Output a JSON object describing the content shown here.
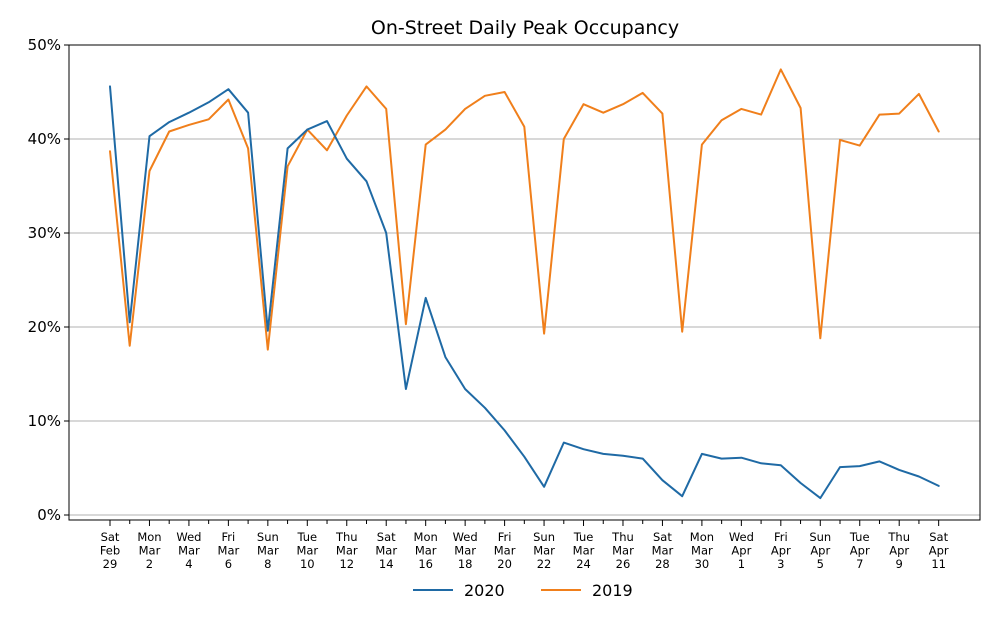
{
  "chart_data": {
    "type": "line",
    "title": "On-Street Daily Peak Occupancy",
    "xlabel": "",
    "ylabel": "",
    "ylim": [
      0,
      0.5
    ],
    "yticks": [
      {
        "value": 0.0,
        "label": "0%"
      },
      {
        "value": 0.1,
        "label": "10%"
      },
      {
        "value": 0.2,
        "label": "20%"
      },
      {
        "value": 0.3,
        "label": "30%"
      },
      {
        "value": 0.4,
        "label": "40%"
      },
      {
        "value": 0.5,
        "label": "50%"
      }
    ],
    "grid": "y",
    "legend": "bottom-center",
    "x_labels": [
      [
        "Sat",
        "Feb",
        "29"
      ],
      [
        "Mon",
        "Mar",
        "2"
      ],
      [
        "Wed",
        "Mar",
        "4"
      ],
      [
        "Fri",
        "Mar",
        "6"
      ],
      [
        "Sun",
        "Mar",
        "8"
      ],
      [
        "Tue",
        "Mar",
        "10"
      ],
      [
        "Thu",
        "Mar",
        "12"
      ],
      [
        "Sat",
        "Mar",
        "14"
      ],
      [
        "Mon",
        "Mar",
        "16"
      ],
      [
        "Wed",
        "Mar",
        "18"
      ],
      [
        "Fri",
        "Mar",
        "20"
      ],
      [
        "Sun",
        "Mar",
        "22"
      ],
      [
        "Tue",
        "Mar",
        "24"
      ],
      [
        "Thu",
        "Mar",
        "26"
      ],
      [
        "Sat",
        "Mar",
        "28"
      ],
      [
        "Mon",
        "Mar",
        "30"
      ],
      [
        "Wed",
        "Apr",
        "1"
      ],
      [
        "Fri",
        "Apr",
        "3"
      ],
      [
        "Sun",
        "Apr",
        "5"
      ],
      [
        "Tue",
        "Apr",
        "7"
      ],
      [
        "Thu",
        "Apr",
        "9"
      ],
      [
        "Sat",
        "Apr",
        "11"
      ]
    ],
    "series": [
      {
        "name": "2020",
        "color": "#1f6aa5",
        "values": [
          0.456,
          0.205,
          0.403,
          0.418,
          0.428,
          0.439,
          0.453,
          0.428,
          0.196,
          0.39,
          0.41,
          0.419,
          0.379,
          0.355,
          0.3,
          0.134,
          0.231,
          0.168,
          0.134,
          0.114,
          0.09,
          0.062,
          0.03,
          0.077,
          0.07,
          0.065,
          0.063,
          0.06,
          0.037,
          0.02,
          0.065,
          0.06,
          0.061,
          0.055,
          0.053,
          0.034,
          0.018,
          0.051,
          0.052,
          0.057,
          0.048,
          0.041,
          0.031
        ]
      },
      {
        "name": "2019",
        "color": "#f07f1b",
        "values": [
          0.387,
          0.18,
          0.366,
          0.408,
          0.415,
          0.421,
          0.442,
          0.39,
          0.176,
          0.371,
          0.41,
          0.388,
          0.425,
          0.456,
          0.432,
          0.203,
          0.394,
          0.41,
          0.432,
          0.446,
          0.45,
          0.413,
          0.193,
          0.4,
          0.437,
          0.428,
          0.437,
          0.449,
          0.427,
          0.195,
          0.394,
          0.42,
          0.432,
          0.426,
          0.474,
          0.433,
          0.188,
          0.399,
          0.393,
          0.426,
          0.427,
          0.448,
          0.408
        ]
      }
    ]
  }
}
